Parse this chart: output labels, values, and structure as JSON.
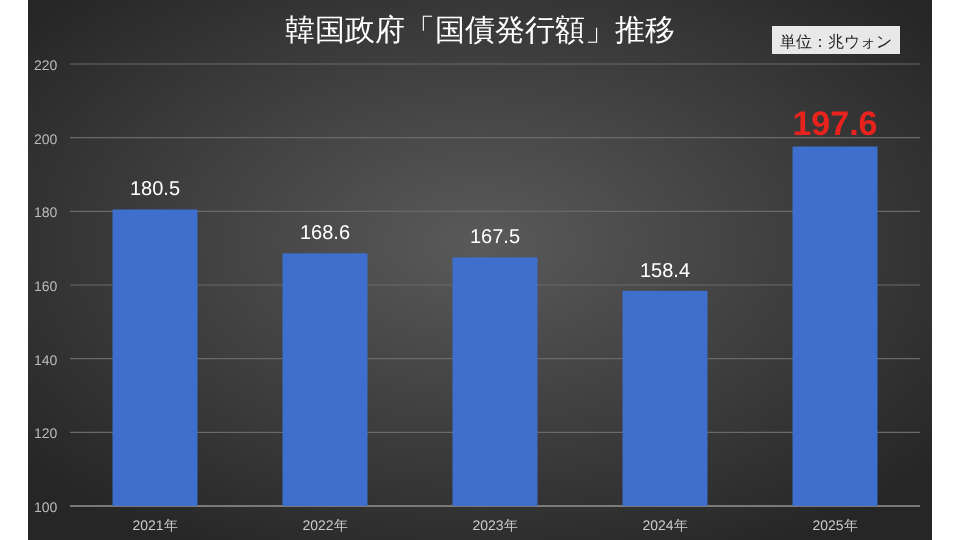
{
  "chart_data": {
    "type": "bar",
    "title": "韓国政府「国債発行額」推移",
    "annotations": [
      "単位：兆ウォン"
    ],
    "categories": [
      "2021年",
      "2022年",
      "2023年",
      "2024年",
      "2025年"
    ],
    "values": [
      180.5,
      168.6,
      167.5,
      158.4,
      197.6
    ],
    "color": "#3f6fcc",
    "ylim": [
      100,
      220
    ],
    "yticks": [
      100,
      120,
      140,
      160,
      180,
      200,
      220
    ],
    "grid": "y",
    "data_labels": true
  }
}
